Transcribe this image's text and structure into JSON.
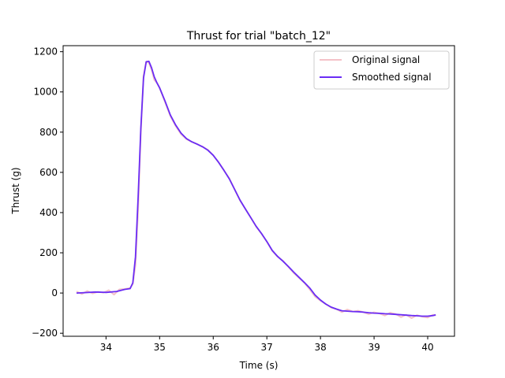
{
  "chart_data": {
    "type": "line",
    "title": "Thrust for trial \"batch_12\"",
    "xlabel": "Time (s)",
    "ylabel": "Thrust (g)",
    "xlim": [
      33.2,
      40.5
    ],
    "ylim": [
      -215,
      1230
    ],
    "xticks": [
      34,
      35,
      36,
      37,
      38,
      39,
      40
    ],
    "yticks": [
      -200,
      0,
      200,
      400,
      600,
      800,
      1000,
      1200
    ],
    "legend": "top-right",
    "grid": false,
    "series": [
      {
        "name": "Original signal",
        "color": "#f4c2c8",
        "x": [
          33.45,
          33.55,
          33.65,
          33.75,
          33.85,
          33.95,
          34.05,
          34.15,
          34.25,
          34.35,
          34.45,
          34.5,
          34.55,
          34.6,
          34.65,
          34.7,
          34.75,
          34.8,
          34.85,
          34.9,
          34.95,
          35.0,
          35.1,
          35.2,
          35.3,
          35.4,
          35.5,
          35.6,
          35.7,
          35.8,
          35.9,
          36.0,
          36.1,
          36.2,
          36.3,
          36.4,
          36.5,
          36.6,
          36.7,
          36.8,
          36.9,
          37.0,
          37.1,
          37.2,
          37.3,
          37.4,
          37.5,
          37.6,
          37.7,
          37.8,
          37.9,
          38.0,
          38.1,
          38.2,
          38.3,
          38.4,
          38.5,
          38.6,
          38.7,
          38.8,
          38.9,
          39.0,
          39.1,
          39.2,
          39.3,
          39.4,
          39.5,
          39.6,
          39.7,
          39.8,
          39.9,
          40.0,
          40.1,
          40.15
        ],
        "y": [
          8,
          -5,
          10,
          -2,
          6,
          2,
          14,
          -8,
          18,
          20,
          25,
          45,
          140,
          420,
          800,
          1080,
          1150,
          1145,
          1110,
          1060,
          1045,
          1020,
          950,
          880,
          830,
          790,
          765,
          752,
          740,
          728,
          712,
          685,
          650,
          610,
          570,
          515,
          460,
          418,
          375,
          330,
          295,
          255,
          210,
          180,
          160,
          130,
          100,
          75,
          50,
          18,
          -18,
          -38,
          -55,
          -72,
          -80,
          -95,
          -82,
          -92,
          -88,
          -95,
          -105,
          -96,
          -102,
          -112,
          -98,
          -104,
          -120,
          -108,
          -125,
          -110,
          -118,
          -122,
          -108,
          -112
        ]
      },
      {
        "name": "Smoothed signal",
        "color": "#6a2cf5",
        "x": [
          33.45,
          33.6,
          33.8,
          34.0,
          34.2,
          34.35,
          34.45,
          34.5,
          34.55,
          34.6,
          34.65,
          34.7,
          34.75,
          34.8,
          34.85,
          34.9,
          34.95,
          35.0,
          35.1,
          35.2,
          35.3,
          35.4,
          35.5,
          35.6,
          35.7,
          35.8,
          35.9,
          36.0,
          36.1,
          36.2,
          36.3,
          36.4,
          36.5,
          36.6,
          36.7,
          36.8,
          36.9,
          37.0,
          37.1,
          37.2,
          37.3,
          37.4,
          37.5,
          37.6,
          37.7,
          37.8,
          37.9,
          38.0,
          38.1,
          38.2,
          38.3,
          38.4,
          38.5,
          38.6,
          38.7,
          38.8,
          38.9,
          39.0,
          39.1,
          39.2,
          39.3,
          39.4,
          39.5,
          39.6,
          39.7,
          39.8,
          39.9,
          40.0,
          40.1,
          40.15
        ],
        "y": [
          0,
          2,
          5,
          3,
          8,
          18,
          22,
          50,
          180,
          480,
          820,
          1070,
          1150,
          1152,
          1120,
          1075,
          1045,
          1020,
          955,
          885,
          835,
          795,
          768,
          752,
          740,
          727,
          710,
          685,
          650,
          610,
          568,
          515,
          462,
          418,
          375,
          332,
          296,
          256,
          212,
          182,
          158,
          132,
          104,
          78,
          52,
          25,
          -10,
          -35,
          -55,
          -70,
          -80,
          -88,
          -90,
          -92,
          -93,
          -95,
          -98,
          -100,
          -101,
          -103,
          -104,
          -106,
          -108,
          -110,
          -112,
          -113,
          -115,
          -115,
          -112,
          -108
        ]
      }
    ]
  }
}
